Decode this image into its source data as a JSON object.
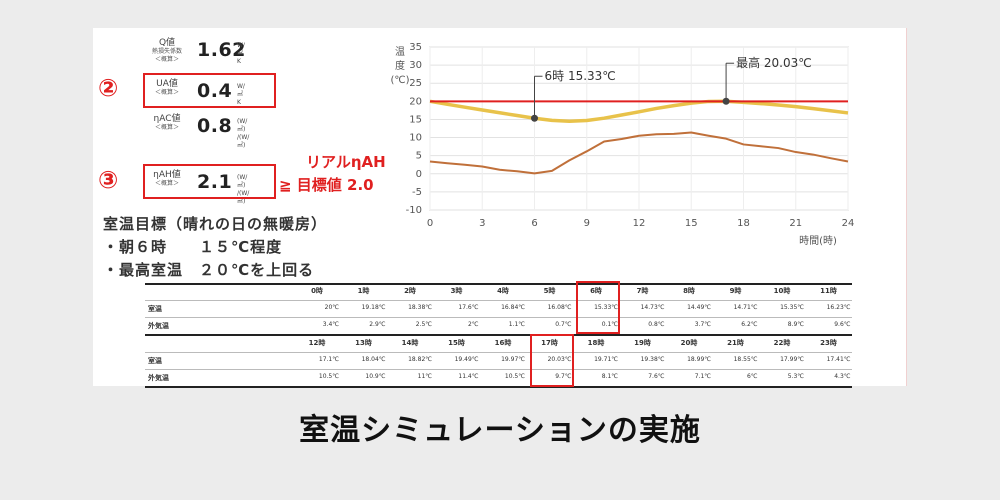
{
  "metrics": [
    {
      "name": "Q値",
      "sub1": "熱損失係数",
      "sub2": "＜概算＞",
      "value": "1.62",
      "unit1": "W/㎡K",
      "unit2": ""
    },
    {
      "name": "UA値",
      "sub1": "",
      "sub2": "＜概算＞",
      "value": "0.4",
      "unit1": "W/㎡K",
      "unit2": ""
    },
    {
      "name": "ηAC値",
      "sub1": "",
      "sub2": "＜概算＞",
      "value": "0.8",
      "unit1": "(W/㎡)",
      "unit2": "/(W/㎡)"
    },
    {
      "name": "ηAH値",
      "sub1": "",
      "sub2": "＜概算＞",
      "value": "2.1",
      "unit1": "(W/㎡)",
      "unit2": "/(W/㎡)"
    }
  ],
  "markers": {
    "two": "②",
    "three": "③"
  },
  "real_label": "リアルηAH",
  "target_label": "≧ 目標値 2.0",
  "notes": [
    "室温目標（晴れの日の無暖房）",
    "・朝６時　　１５℃程度",
    "・最高室温　２０℃を上回る"
  ],
  "caption": "室温シミュレーションの実施",
  "colors": {
    "red": "#e02020",
    "indoor": "#e8c24a",
    "outdoor": "#c0703a"
  },
  "chart_data": {
    "type": "line",
    "ylabel": [
      "温",
      "度",
      "(℃)"
    ],
    "xlabel": "時間(時)",
    "xlim": [
      0,
      24
    ],
    "ylim": [
      -10,
      35
    ],
    "xticks": [
      0,
      3,
      6,
      9,
      12,
      15,
      18,
      21,
      24
    ],
    "yticks": [
      -10,
      -5,
      0,
      5,
      10,
      15,
      20,
      25,
      30,
      35
    ],
    "grid": true,
    "reference_line": 20,
    "x": [
      0,
      1,
      2,
      3,
      4,
      5,
      6,
      7,
      8,
      9,
      10,
      11,
      12,
      13,
      14,
      15,
      16,
      17,
      18,
      19,
      20,
      21,
      22,
      23,
      24
    ],
    "series": [
      {
        "values": [
          20,
          19.18,
          18.38,
          17.6,
          16.84,
          16.08,
          15.33,
          14.73,
          14.49,
          14.71,
          15.35,
          16.23,
          17.1,
          18.04,
          18.82,
          19.49,
          19.97,
          20.03,
          19.71,
          19.38,
          18.99,
          18.55,
          17.99,
          17.41,
          16.8
        ]
      },
      {
        "values": [
          3.4,
          2.9,
          2.5,
          2,
          1.1,
          0.7,
          0.1,
          0.8,
          3.7,
          6.2,
          8.9,
          9.6,
          10.5,
          10.9,
          11,
          11.4,
          10.5,
          9.7,
          8.1,
          7.6,
          7.1,
          6,
          5.3,
          4.3,
          3.4
        ]
      }
    ],
    "annotations": [
      {
        "text": "6時 15.33℃",
        "x": 6,
        "y": 15.33
      },
      {
        "text": "最高 20.03℃",
        "x": 17,
        "y": 20.03
      }
    ]
  },
  "table": {
    "header1": [
      "0時",
      "1時",
      "2時",
      "3時",
      "4時",
      "5時",
      "6時",
      "7時",
      "8時",
      "9時",
      "10時",
      "11時"
    ],
    "header2": [
      "12時",
      "13時",
      "14時",
      "15時",
      "16時",
      "17時",
      "18時",
      "19時",
      "20時",
      "21時",
      "22時",
      "23時"
    ],
    "row_in": "室温",
    "row_out": "外気温",
    "in1": [
      "20℃",
      "19.18℃",
      "18.38℃",
      "17.6℃",
      "16.84℃",
      "16.08℃",
      "15.33℃",
      "14.73℃",
      "14.49℃",
      "14.71℃",
      "15.35℃",
      "16.23℃"
    ],
    "out1": [
      "3.4℃",
      "2.9℃",
      "2.5℃",
      "2℃",
      "1.1℃",
      "0.7℃",
      "0.1℃",
      "0.8℃",
      "3.7℃",
      "6.2℃",
      "8.9℃",
      "9.6℃"
    ],
    "in2": [
      "17.1℃",
      "18.04℃",
      "18.82℃",
      "19.49℃",
      "19.97℃",
      "20.03℃",
      "19.71℃",
      "19.38℃",
      "18.99℃",
      "18.55℃",
      "17.99℃",
      "17.41℃"
    ],
    "out2": [
      "10.5℃",
      "10.9℃",
      "11℃",
      "11.4℃",
      "10.5℃",
      "9.7℃",
      "8.1℃",
      "7.6℃",
      "7.1℃",
      "6℃",
      "5.3℃",
      "4.3℃"
    ]
  }
}
